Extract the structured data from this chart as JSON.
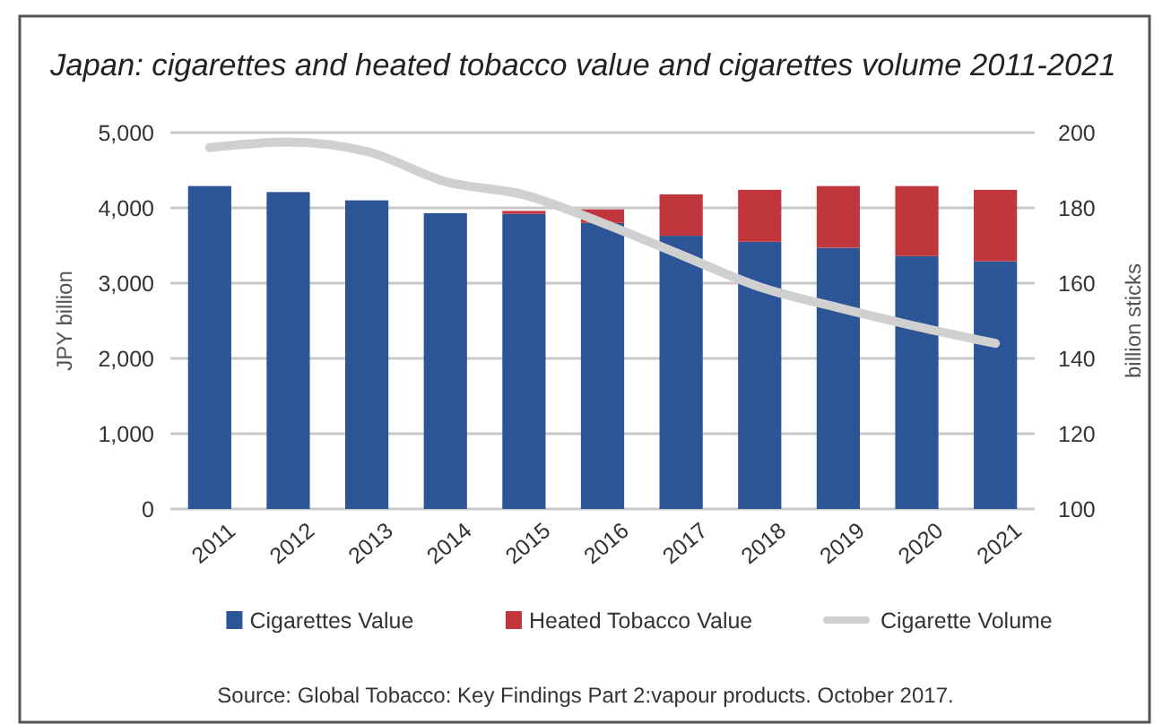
{
  "chart_data": {
    "type": "bar",
    "title": "Japan: cigarettes and heated tobacco value and cigarettes volume 2011-2021",
    "ylabel": "JPY billion",
    "y2label": "billion sticks",
    "categories": [
      "2011",
      "2012",
      "2013",
      "2014",
      "2015",
      "2016",
      "2017",
      "2018",
      "2019",
      "2020",
      "2021"
    ],
    "stacked": true,
    "series": [
      {
        "name": "Cigarettes Value",
        "color": "#2c5597",
        "values": [
          4290,
          4210,
          4100,
          3930,
          3920,
          3800,
          3630,
          3550,
          3470,
          3360,
          3290
        ]
      },
      {
        "name": "Heated Tobacco Value",
        "color": "#c1353d",
        "values": [
          null,
          null,
          null,
          null,
          40,
          180,
          550,
          690,
          820,
          930,
          950
        ]
      },
      {
        "name": "Cigarette Volume",
        "type": "line",
        "axis": "y2",
        "color": "#d0d0d0",
        "values": [
          196,
          197.5,
          195,
          187,
          183.5,
          176,
          167.5,
          159,
          153.5,
          148.5,
          144
        ]
      }
    ],
    "ylim": [
      0,
      5000
    ],
    "yticks": [
      0,
      {
        "value": 1000,
        "label": "1,000"
      },
      {
        "value": 2000,
        "label": "2,000"
      },
      {
        "value": 3000,
        "label": "3,000"
      },
      {
        "value": 4000,
        "label": "4,000"
      },
      {
        "value": 5000,
        "label": "5,000"
      }
    ],
    "y2lim": [
      100,
      200
    ],
    "y2ticks": [
      100,
      120,
      140,
      160,
      180,
      200
    ],
    "grid": "y",
    "legend": "bottom",
    "annotations": [
      "Source: Global Tobacco: Key Findings Part 2:vapour products. October 2017."
    ]
  }
}
